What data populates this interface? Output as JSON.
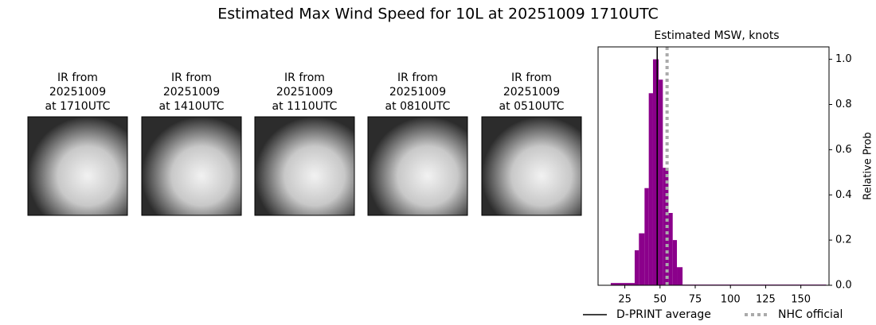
{
  "title": "Estimated Max Wind Speed for 10L at 20251009 1710UTC",
  "panels": [
    {
      "label": [
        "IR from",
        "20251009",
        "at 1710UTC"
      ]
    },
    {
      "label": [
        "IR from",
        "20251009",
        "at 1410UTC"
      ]
    },
    {
      "label": [
        "IR from",
        "20251009",
        "at 1110UTC"
      ]
    },
    {
      "label": [
        "IR from",
        "20251009",
        "at 0810UTC"
      ]
    },
    {
      "label": [
        "IR from",
        "20251009",
        "at 0510UTC"
      ]
    }
  ],
  "chart_data": {
    "type": "histogram",
    "title": "Estimated MSW, knots",
    "y_label": "Relative Prob",
    "bins": [
      15,
      32,
      35,
      39,
      42,
      45,
      49,
      52,
      56,
      59,
      62,
      66,
      168
    ],
    "values": [
      0.01,
      0.155,
      0.23,
      0.43,
      0.85,
      1.0,
      0.91,
      0.52,
      0.32,
      0.2,
      0.08,
      0.003
    ],
    "color": "#8b008b",
    "lines": [
      {
        "name": "D-PRINT average",
        "value": 48,
        "color": "#000000",
        "style": "solid"
      },
      {
        "name": "NHC official",
        "value": 55,
        "color": "#aaaaaa",
        "style": "dotted"
      }
    ],
    "xlim": [
      6,
      170
    ],
    "xticks": [
      25,
      50,
      75,
      100,
      125,
      150
    ],
    "ylim": [
      0,
      1.055
    ],
    "yticks": [
      {
        "value": 0,
        "label": "0.0"
      },
      0.2,
      0.4,
      0.6,
      0.8,
      {
        "value": 1,
        "label": "1.0"
      }
    ],
    "legend": "bottom"
  }
}
